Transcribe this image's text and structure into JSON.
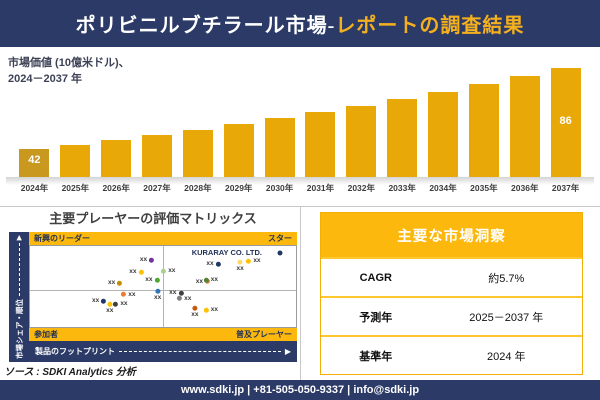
{
  "header": {
    "title_main": "ポリビニルブチラール市場-",
    "title_accent": "レポートの調査結果"
  },
  "bar_section": {
    "subtitle_line1": "市場価値 (10億米ドル)、",
    "subtitle_line2": "2024－2037 年"
  },
  "chart_data": [
    {
      "type": "bar",
      "title": "市場価値 (10億米ドル)、2024－2037 年",
      "categories": [
        "2024年",
        "2025年",
        "2026年",
        "2027年",
        "2028年",
        "2029年",
        "2030年",
        "2031年",
        "2032年",
        "2033年",
        "2034年",
        "2035年",
        "2036年",
        "2037年"
      ],
      "values": [
        42,
        44.4,
        46.9,
        49.6,
        52.4,
        55.4,
        58.6,
        61.9,
        65.4,
        69.2,
        73.1,
        77.3,
        81.7,
        86
      ],
      "visible_value_labels": {
        "first": "42",
        "last": "86"
      },
      "unit": "10億米ドル",
      "bar_color": "#E8A807",
      "first_bar_color": "#C8981F",
      "grid": "off",
      "legend": "none"
    },
    {
      "type": "scatter",
      "title": "主要プレーヤーの評価マトリックス",
      "xlabel": "製品のフットプリント",
      "ylabel": "市場シェア・順位",
      "quadrants": {
        "top_left": "新興のリーダー",
        "top_right": "スター",
        "bottom_left": "参加者",
        "bottom_right": "普及プレーヤー"
      },
      "annotation": "KURARAY CO. LTD.",
      "points": [
        {
          "x": 44,
          "y": 17,
          "color": "#7030A0",
          "label": "xx",
          "side": "left"
        },
        {
          "x": 40,
          "y": 32,
          "color": "#FFC000",
          "label": "xx",
          "side": "left"
        },
        {
          "x": 32,
          "y": 46,
          "color": "#BF8F00",
          "label": "xx",
          "side": "left"
        },
        {
          "x": 46,
          "y": 42,
          "color": "#4EA72E",
          "label": "xx",
          "side": "left"
        },
        {
          "x": 94,
          "y": 9,
          "color": "#1F3864",
          "label": "",
          "side": "none"
        },
        {
          "x": 52,
          "y": 31,
          "color": "#A9D08E",
          "label": "xx",
          "side": "right"
        },
        {
          "x": 69,
          "y": 22,
          "color": "#1F3864",
          "label": "xx",
          "side": "left"
        },
        {
          "x": 79,
          "y": 25,
          "color": "#FFD966",
          "label": "xx",
          "side": "below"
        },
        {
          "x": 84,
          "y": 19,
          "color": "#FFC000",
          "label": "xx",
          "side": "right"
        },
        {
          "x": 65,
          "y": 44,
          "color": "#ED7D31",
          "label": "xx",
          "side": "left"
        },
        {
          "x": 68,
          "y": 42,
          "color": "#548235",
          "label": "xx",
          "side": "right"
        },
        {
          "x": 37,
          "y": 60,
          "color": "#ED7D31",
          "label": "xx",
          "side": "right"
        },
        {
          "x": 48,
          "y": 60,
          "color": "#2E75B6",
          "label": "xx",
          "side": "below"
        },
        {
          "x": 26,
          "y": 68,
          "color": "#1F3864",
          "label": "xx",
          "side": "left"
        },
        {
          "x": 34,
          "y": 72,
          "color": "#404040",
          "label": "xx",
          "side": "right"
        },
        {
          "x": 30,
          "y": 77,
          "color": "#FFC000",
          "label": "xx",
          "side": "below"
        },
        {
          "x": 55,
          "y": 58,
          "color": "#404040",
          "label": "xx",
          "side": "left"
        },
        {
          "x": 58,
          "y": 65,
          "color": "#808080",
          "label": "xx",
          "side": "right"
        },
        {
          "x": 62,
          "y": 81,
          "color": "#C55A11",
          "label": "xx",
          "side": "below"
        },
        {
          "x": 68,
          "y": 79,
          "color": "#FFC000",
          "label": "xx",
          "side": "right"
        }
      ]
    }
  ],
  "insights": {
    "title": "主要な市場洞察",
    "rows": [
      {
        "label": "CAGR",
        "value": "約5.7%"
      },
      {
        "label": "予測年",
        "value": "2025－2037 年"
      },
      {
        "label": "基準年",
        "value": "2024 年"
      }
    ]
  },
  "source_note": "ソース : SDKI Analytics 分析",
  "footer": {
    "text": "www.sdki.jp | +81-505-050-9337 | info@sdki.jp"
  },
  "colors": {
    "navy": "#2B3A67",
    "gold_band": "#FDB80D",
    "accent_yellow": "#F5B01E",
    "bar_gold": "#E8A807"
  }
}
